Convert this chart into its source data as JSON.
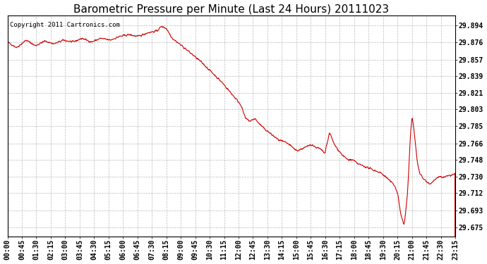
{
  "title": "Barometric Pressure per Minute (Last 24 Hours) 20111023",
  "copyright": "Copyright 2011 Cartronics.com",
  "line_color": "#cc0000",
  "background_color": "#ffffff",
  "grid_color": "#aaaaaa",
  "yticks": [
    29.675,
    29.693,
    29.712,
    29.73,
    29.748,
    29.766,
    29.785,
    29.803,
    29.821,
    29.839,
    29.857,
    29.876,
    29.894
  ],
  "ylim": [
    29.665,
    29.905
  ],
  "xtick_labels": [
    "00:00",
    "00:45",
    "01:30",
    "02:15",
    "03:00",
    "03:45",
    "04:30",
    "05:15",
    "06:00",
    "06:45",
    "07:30",
    "08:15",
    "09:00",
    "09:45",
    "10:30",
    "11:15",
    "12:00",
    "12:45",
    "13:30",
    "14:15",
    "15:00",
    "15:45",
    "16:30",
    "17:15",
    "18:00",
    "18:45",
    "19:30",
    "20:15",
    "21:00",
    "21:45",
    "22:30",
    "23:15"
  ],
  "title_fontsize": 11,
  "tick_fontsize": 7,
  "copyright_fontsize": 6.5
}
